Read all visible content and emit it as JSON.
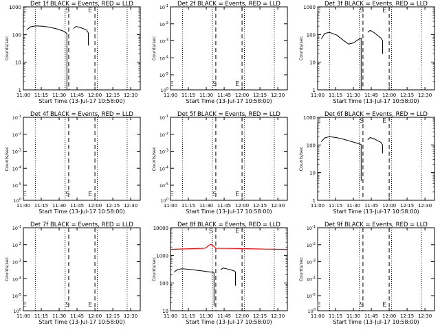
{
  "chart_data": {
    "type": "line",
    "layout": "3x3 grid of panels",
    "shared": {
      "xlabel": "Start Time (13-Jul-17 10:58:00)",
      "ylabel": "Counts/sec",
      "x_tick_labels": [
        "11:00",
        "11:15",
        "11:30",
        "11:45",
        "12:00",
        "12:15",
        "12:30"
      ],
      "x_range_minutes_after_1100": [
        0,
        98
      ],
      "x_tick_minutes": [
        0,
        15,
        30,
        45,
        60,
        75,
        90
      ],
      "dotted_line_minutes": [
        10,
        35,
        62,
        87
      ],
      "dashed_line_minutes": [
        38,
        60
      ],
      "colors": {
        "events": "#000000",
        "lld": "#ff0000"
      },
      "marker_labels": [
        "S",
        "E"
      ]
    },
    "panels": [
      {
        "title": "Det 1f BLACK = Events, RED = LLD",
        "y_tick_labels": [
          "1",
          "10",
          "100",
          "1000"
        ],
        "y_range_log10": [
          0,
          3
        ],
        "events_segments": [
          [
            [
              3,
              150
            ],
            [
              6,
              190
            ],
            [
              10,
              205
            ],
            [
              16,
              200
            ],
            [
              22,
              185
            ],
            [
              28,
              160
            ],
            [
              32,
              140
            ],
            [
              34,
              130
            ],
            [
              36.5,
              110
            ]
          ],
          [
            [
              42,
              165
            ],
            [
              44,
              195
            ],
            [
              47,
              185
            ],
            [
              50,
              165
            ],
            [
              53,
              145
            ],
            [
              54.5,
              115
            ]
          ]
        ],
        "event_drops": [
          {
            "x": 36.5,
            "from": 110,
            "to": 1
          },
          {
            "x": 54.5,
            "from": 115,
            "to": 40
          }
        ],
        "lld": [],
        "marker_positions": [
          [
            1,
            1000
          ],
          [
            37,
            1000
          ],
          [
            56,
            1000
          ]
        ]
      },
      {
        "title": "Det 2f BLACK = Events, RED = LLD",
        "y_tick_labels": [
          "10^-1",
          "10^-2",
          "10^-3",
          "10^-4",
          "10^-5",
          "10^0"
        ],
        "y_range_log10": [
          0,
          1
        ],
        "events_segments": [],
        "event_drops": [],
        "lld": [],
        "marker_positions": [
          [
            1,
            1.12
          ],
          [
            37,
            1.12
          ],
          [
            56,
            1.12
          ]
        ]
      },
      {
        "title": "Det 3f BLACK = Events, RED = LLD",
        "y_tick_labels": [
          "1",
          "10",
          "100",
          "1000"
        ],
        "y_range_log10": [
          0,
          3
        ],
        "events_segments": [
          [
            [
              3,
              70
            ],
            [
              6,
              110
            ],
            [
              10,
              120
            ],
            [
              16,
              95
            ],
            [
              22,
              60
            ],
            [
              26,
              45
            ],
            [
              30,
              50
            ],
            [
              34,
              65
            ],
            [
              36.5,
              75
            ]
          ],
          [
            [
              42,
              120
            ],
            [
              44,
              140
            ],
            [
              47,
              120
            ],
            [
              50,
              95
            ],
            [
              53,
              75
            ],
            [
              54.5,
              60
            ]
          ]
        ],
        "event_drops": [
          {
            "x": 36.5,
            "from": 75,
            "to": 1
          },
          {
            "x": 54.5,
            "from": 60,
            "to": 20
          }
        ],
        "lld": [],
        "marker_positions": [
          [
            1,
            1000
          ],
          [
            37,
            1000
          ],
          [
            56,
            1000
          ]
        ]
      },
      {
        "title": "Det 4f BLACK = Events, RED = LLD",
        "y_tick_labels": [
          "10^-1",
          "10^-2",
          "10^-3",
          "10^-4",
          "10^-5",
          "10^0"
        ],
        "y_range_log10": [
          0,
          1
        ],
        "events_segments": [],
        "event_drops": [],
        "lld": [],
        "marker_positions": [
          [
            1,
            1.12
          ],
          [
            37,
            1.12
          ],
          [
            56,
            1.12
          ]
        ]
      },
      {
        "title": "Det 5f BLACK = Events, RED = LLD",
        "y_tick_labels": [
          "10^-1",
          "10^-2",
          "10^-3",
          "10^-4",
          "10^-5",
          "10^0"
        ],
        "y_range_log10": [
          0,
          1
        ],
        "events_segments": [],
        "event_drops": [],
        "lld": [],
        "marker_positions": [
          [
            1,
            1.12
          ],
          [
            37,
            1.12
          ],
          [
            56,
            1.12
          ]
        ]
      },
      {
        "title": "Det 6f BLACK = Events, RED = LLD",
        "y_tick_labels": [
          "1",
          "10",
          "100",
          "1000"
        ],
        "y_range_log10": [
          0,
          3
        ],
        "events_segments": [
          [
            [
              3,
              130
            ],
            [
              6,
              180
            ],
            [
              10,
              200
            ],
            [
              16,
              185
            ],
            [
              22,
              160
            ],
            [
              28,
              135
            ],
            [
              32,
              120
            ],
            [
              36.5,
              105
            ]
          ],
          [
            [
              42,
              155
            ],
            [
              44,
              185
            ],
            [
              47,
              170
            ],
            [
              50,
              145
            ],
            [
              53,
              125
            ],
            [
              54.5,
              100
            ]
          ]
        ],
        "event_drops": [
          {
            "x": 36.5,
            "from": 105,
            "to": 5
          },
          {
            "x": 54.5,
            "from": 100,
            "to": 50
          }
        ],
        "lld": [],
        "marker_positions": [
          [
            1,
            1000
          ],
          [
            37,
            1000
          ],
          [
            56,
            1000
          ]
        ]
      },
      {
        "title": "Det 7f BLACK = Events, RED = LLD",
        "y_tick_labels": [
          "10^-1",
          "10^-2",
          "10^-3",
          "10^-4",
          "10^-5",
          "10^0"
        ],
        "y_range_log10": [
          0,
          1
        ],
        "events_segments": [],
        "event_drops": [],
        "lld": [],
        "marker_positions": [
          [
            1,
            1.12
          ],
          [
            37,
            1.12
          ],
          [
            56,
            1.12
          ]
        ]
      },
      {
        "title": "Det 8f BLACK = Events, RED = LLD",
        "y_tick_labels": [
          "10",
          "100",
          "1000",
          "10000"
        ],
        "y_range_log10": [
          1,
          4
        ],
        "events_segments": [
          [
            [
              3,
              250
            ],
            [
              6,
              310
            ],
            [
              10,
              330
            ],
            [
              16,
              310
            ],
            [
              22,
              290
            ],
            [
              28,
              270
            ],
            [
              32,
              255
            ],
            [
              36.5,
              240
            ]
          ],
          [
            [
              42,
              300
            ],
            [
              44,
              350
            ],
            [
              47,
              330
            ],
            [
              50,
              305
            ],
            [
              53,
              280
            ],
            [
              54.5,
              255
            ]
          ]
        ],
        "event_drops": [
          {
            "x": 36.5,
            "from": 240,
            "to": 15
          },
          {
            "x": 54.5,
            "from": 255,
            "to": 80
          }
        ],
        "lld": [
          [
            0,
            1650
          ],
          [
            10,
            1700
          ],
          [
            20,
            1750
          ],
          [
            28,
            1800
          ],
          [
            30,
            1900
          ],
          [
            32,
            2300
          ],
          [
            34,
            2500
          ],
          [
            36,
            2200
          ],
          [
            38,
            1800
          ],
          [
            48,
            1780
          ],
          [
            60,
            1750
          ],
          [
            75,
            1700
          ],
          [
            98,
            1650
          ]
        ],
        "marker_positions": [
          [
            34,
            10000
          ],
          [
            56,
            10000
          ]
        ]
      },
      {
        "title": "Det 9f BLACK = Events, RED = LLD",
        "y_tick_labels": [
          "10^-1",
          "10^-2",
          "10^-3",
          "10^-4",
          "10^-5",
          "10^0"
        ],
        "y_range_log10": [
          0,
          1
        ],
        "events_segments": [],
        "event_drops": [],
        "lld": [],
        "marker_positions": [
          [
            1,
            1.12
          ],
          [
            37,
            1.12
          ],
          [
            56,
            1.12
          ]
        ]
      }
    ]
  }
}
